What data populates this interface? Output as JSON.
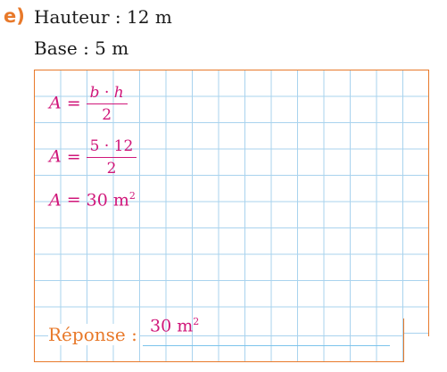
{
  "problem": {
    "label": "e)",
    "height_line": "Hauteur : 12 m",
    "base_line": "Base : 5 m"
  },
  "work": {
    "line1": {
      "lhs": "A",
      "eq": "=",
      "num_b": "b",
      "num_dot": "·",
      "num_h": "h",
      "den": "2"
    },
    "line2": {
      "lhs": "A",
      "eq": "=",
      "num": "5 · 12",
      "den": "2"
    },
    "line3": {
      "lhs": "A",
      "eq": "=",
      "value": "30 m",
      "exp": "2"
    }
  },
  "answer": {
    "label": "Réponse :",
    "value": "30 m",
    "exp": "2"
  },
  "colors": {
    "accent_orange": "#e8792a",
    "math_magenta": "#d0177a",
    "grid_blue": "#a9d3ee"
  }
}
